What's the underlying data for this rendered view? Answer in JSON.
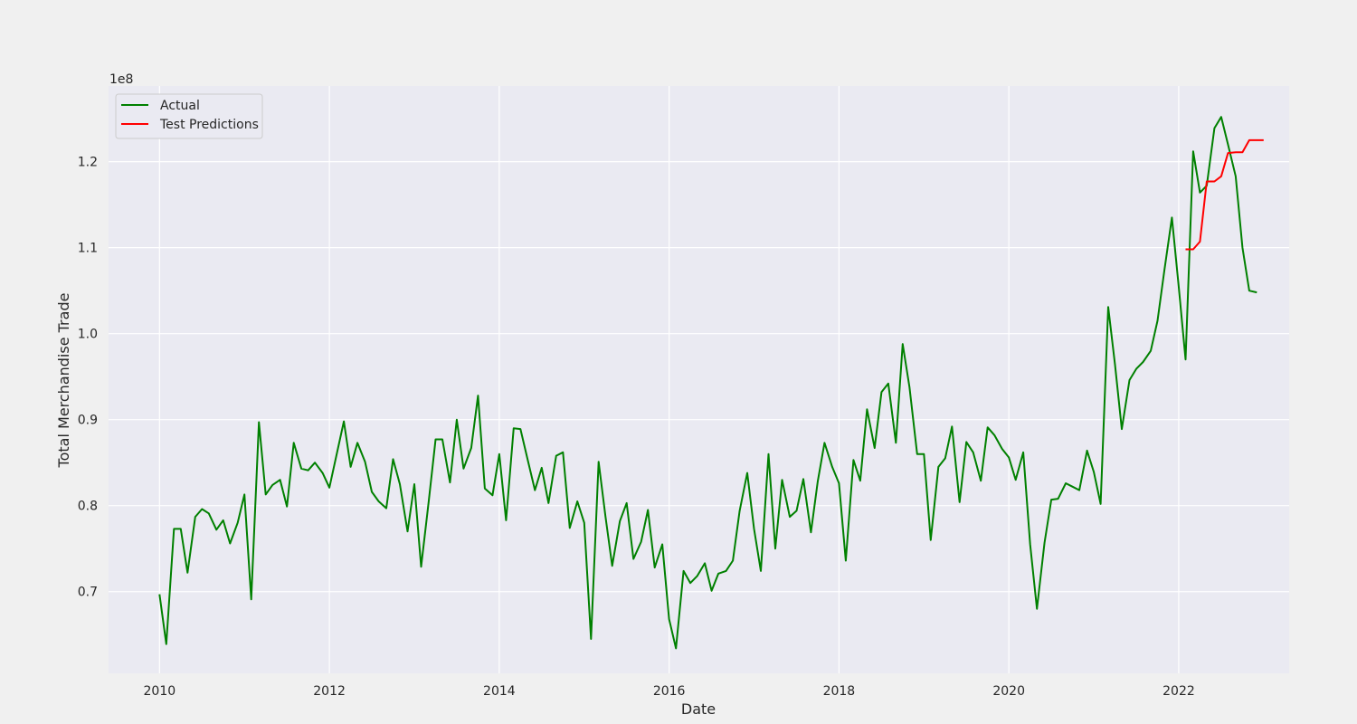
{
  "chart_data": {
    "type": "line",
    "xlabel": "Date",
    "ylabel": "Total Merchandise Trade",
    "y_offset_text": "1e8",
    "x_ticks": [
      2010,
      2012,
      2014,
      2016,
      2018,
      2020,
      2022
    ],
    "y_ticks": [
      0.7,
      0.8,
      0.9,
      1.0,
      1.1,
      1.2
    ],
    "xlim": [
      2009.4,
      2023.3
    ],
    "ylim": [
      0.605,
      1.288
    ],
    "grid": true,
    "legend_position": "top-left",
    "series": [
      {
        "name": "Actual",
        "color": "#008000",
        "x": [
          2010.0,
          2010.08,
          2010.17,
          2010.25,
          2010.33,
          2010.42,
          2010.5,
          2010.58,
          2010.67,
          2010.75,
          2010.83,
          2010.92,
          2011.0,
          2011.08,
          2011.17,
          2011.25,
          2011.33,
          2011.42,
          2011.5,
          2011.58,
          2011.67,
          2011.75,
          2011.83,
          2011.92,
          2012.0,
          2012.08,
          2012.17,
          2012.25,
          2012.33,
          2012.42,
          2012.5,
          2012.58,
          2012.67,
          2012.75,
          2012.83,
          2012.92,
          2013.0,
          2013.08,
          2013.17,
          2013.25,
          2013.33,
          2013.42,
          2013.5,
          2013.58,
          2013.67,
          2013.75,
          2013.83,
          2013.92,
          2014.0,
          2014.08,
          2014.17,
          2014.25,
          2014.33,
          2014.42,
          2014.5,
          2014.58,
          2014.67,
          2014.75,
          2014.83,
          2014.92,
          2015.0,
          2015.08,
          2015.17,
          2015.25,
          2015.33,
          2015.42,
          2015.5,
          2015.58,
          2015.67,
          2015.75,
          2015.83,
          2015.92,
          2016.0,
          2016.08,
          2016.17,
          2016.25,
          2016.33,
          2016.42,
          2016.5,
          2016.58,
          2016.67,
          2016.75,
          2016.83,
          2016.92,
          2017.0,
          2017.08,
          2017.17,
          2017.25,
          2017.33,
          2017.42,
          2017.5,
          2017.58,
          2017.67,
          2017.75,
          2017.83,
          2017.92,
          2018.0,
          2018.08,
          2018.17,
          2018.25,
          2018.33,
          2018.42,
          2018.5,
          2018.58,
          2018.67,
          2018.75,
          2018.83,
          2018.92,
          2019.0,
          2019.08,
          2019.17,
          2019.25,
          2019.33,
          2019.42,
          2019.5,
          2019.58,
          2019.67,
          2019.75,
          2019.83,
          2019.92,
          2020.0,
          2020.08,
          2020.17,
          2020.25,
          2020.33,
          2020.42,
          2020.5,
          2020.58,
          2020.67,
          2020.75,
          2020.83,
          2020.92,
          2021.0,
          2021.08,
          2021.17,
          2021.25,
          2021.33,
          2021.42,
          2021.5,
          2021.58,
          2021.67,
          2021.75,
          2021.83,
          2021.92,
          2022.0,
          2022.08,
          2022.17,
          2022.25,
          2022.33,
          2022.42,
          2022.5,
          2022.58,
          2022.67,
          2022.75,
          2022.83,
          2022.92
        ],
        "y": [
          0.697,
          0.639,
          0.773,
          0.773,
          0.722,
          0.787,
          0.796,
          0.791,
          0.772,
          0.783,
          0.756,
          0.78,
          0.813,
          0.691,
          0.897,
          0.813,
          0.824,
          0.83,
          0.799,
          0.873,
          0.843,
          0.841,
          0.85,
          0.838,
          0.821,
          0.857,
          0.898,
          0.845,
          0.873,
          0.851,
          0.816,
          0.805,
          0.797,
          0.854,
          0.825,
          0.77,
          0.825,
          0.729,
          0.805,
          0.877,
          0.877,
          0.827,
          0.9,
          0.843,
          0.867,
          0.928,
          0.82,
          0.812,
          0.86,
          0.783,
          0.89,
          0.889,
          0.855,
          0.818,
          0.844,
          0.803,
          0.858,
          0.862,
          0.774,
          0.805,
          0.78,
          0.645,
          0.851,
          0.788,
          0.73,
          0.782,
          0.803,
          0.738,
          0.758,
          0.795,
          0.728,
          0.755,
          0.668,
          0.634,
          0.724,
          0.71,
          0.718,
          0.733,
          0.701,
          0.721,
          0.724,
          0.736,
          0.794,
          0.838,
          0.773,
          0.724,
          0.86,
          0.75,
          0.83,
          0.787,
          0.794,
          0.831,
          0.769,
          0.828,
          0.873,
          0.845,
          0.826,
          0.736,
          0.853,
          0.829,
          0.912,
          0.867,
          0.932,
          0.942,
          0.873,
          0.988,
          0.938,
          0.86,
          0.86,
          0.76,
          0.845,
          0.855,
          0.892,
          0.804,
          0.874,
          0.862,
          0.829,
          0.891,
          0.882,
          0.866,
          0.856,
          0.83,
          0.862,
          0.755,
          0.68,
          0.757,
          0.807,
          0.808,
          0.826,
          0.822,
          0.818,
          0.864,
          0.839,
          0.802,
          1.031,
          0.964,
          0.889,
          0.946,
          0.959,
          0.967,
          0.98,
          1.015,
          1.073,
          1.135,
          1.055,
          0.97,
          1.212,
          1.164,
          1.172,
          1.239,
          1.252,
          1.22,
          1.183,
          1.1,
          1.05,
          1.048
        ]
      },
      {
        "name": "Test Predictions",
        "color": "#ff0000",
        "x": [
          2022.08,
          2022.17,
          2022.25,
          2022.33,
          2022.42,
          2022.5,
          2022.58,
          2022.67,
          2022.75,
          2022.83,
          2022.92,
          2023.0
        ],
        "y": [
          1.098,
          1.098,
          1.107,
          1.177,
          1.177,
          1.183,
          1.21,
          1.211,
          1.211,
          1.225,
          1.225,
          1.225
        ]
      }
    ]
  }
}
